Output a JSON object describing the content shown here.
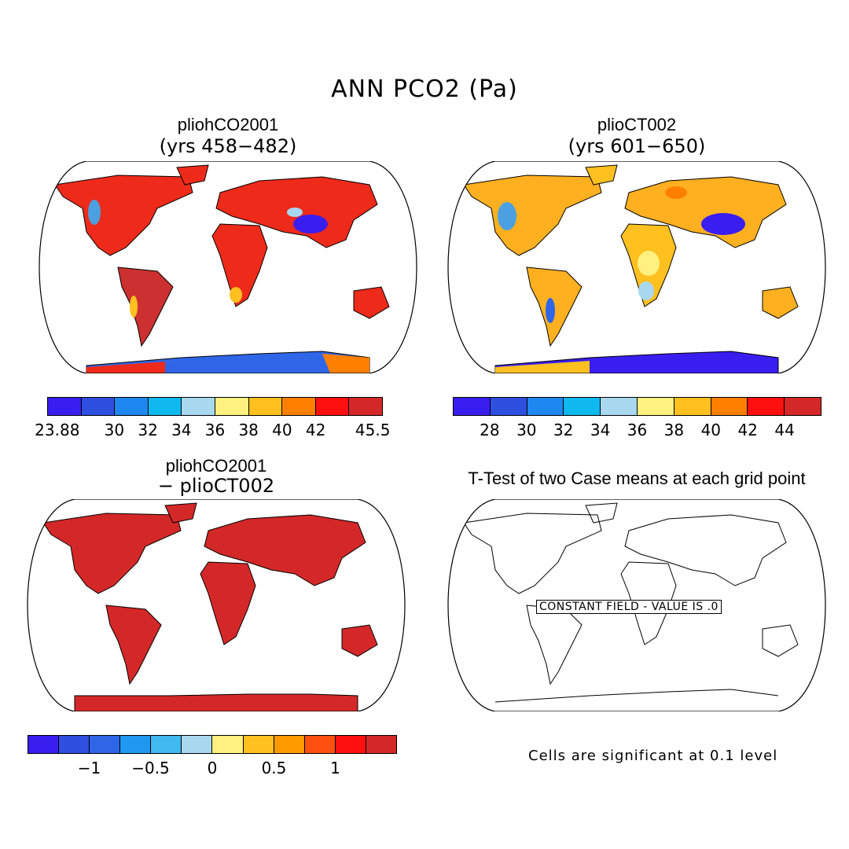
{
  "figure": {
    "title": "ANN PCO2 (Pa)"
  },
  "panels": {
    "top_left": {
      "title": "pliohCO2001",
      "subtitle": "(yrs 458−482)"
    },
    "top_right": {
      "title": "plioCT002",
      "subtitle": "(yrs 601−650)"
    },
    "bottom_left": {
      "title": "pliohCO2001",
      "subtitle": "− plioCT002"
    },
    "bottom_right": {
      "title": "T-Test of two Case means at each grid point",
      "field_note": "CONSTANT FIELD - VALUE IS .0",
      "footnote": "Cells are significant at 0.1 level"
    }
  },
  "colorbars": {
    "top_left": {
      "colors": [
        "#3a1ef0",
        "#2f4fe0",
        "#1e88f0",
        "#10b8f0",
        "#a8d8f0",
        "#fff080",
        "#ffc020",
        "#ff8000",
        "#ff1010",
        "#d42828"
      ],
      "ticks": [
        "23.88",
        "30",
        "32",
        "34",
        "36",
        "38",
        "40",
        "42",
        "45.5"
      ]
    },
    "top_right": {
      "colors": [
        "#3a1ef0",
        "#2f4fe0",
        "#1e88f0",
        "#10b8f0",
        "#a8d8f0",
        "#fff080",
        "#ffc020",
        "#ff8000",
        "#ff1010",
        "#d42828"
      ],
      "ticks": [
        "28",
        "30",
        "32",
        "34",
        "36",
        "38",
        "40",
        "42",
        "44"
      ]
    },
    "bottom_left": {
      "colors": [
        "#3a1ef0",
        "#2f4fe0",
        "#2f66e8",
        "#1e98f0",
        "#40b8f0",
        "#a8d8f0",
        "#fff080",
        "#ffc020",
        "#ff9a00",
        "#ff5010",
        "#ff1010",
        "#d42828"
      ],
      "ticks": [
        "−1",
        "−0.5",
        "0",
        "0.5",
        "1"
      ]
    }
  },
  "legend_colors": {
    "dominant_top_left": "#ee2a1a",
    "dominant_top_right": "#ffb020",
    "difference_fill": "#d42828",
    "low_values": "#3a1ef0"
  }
}
